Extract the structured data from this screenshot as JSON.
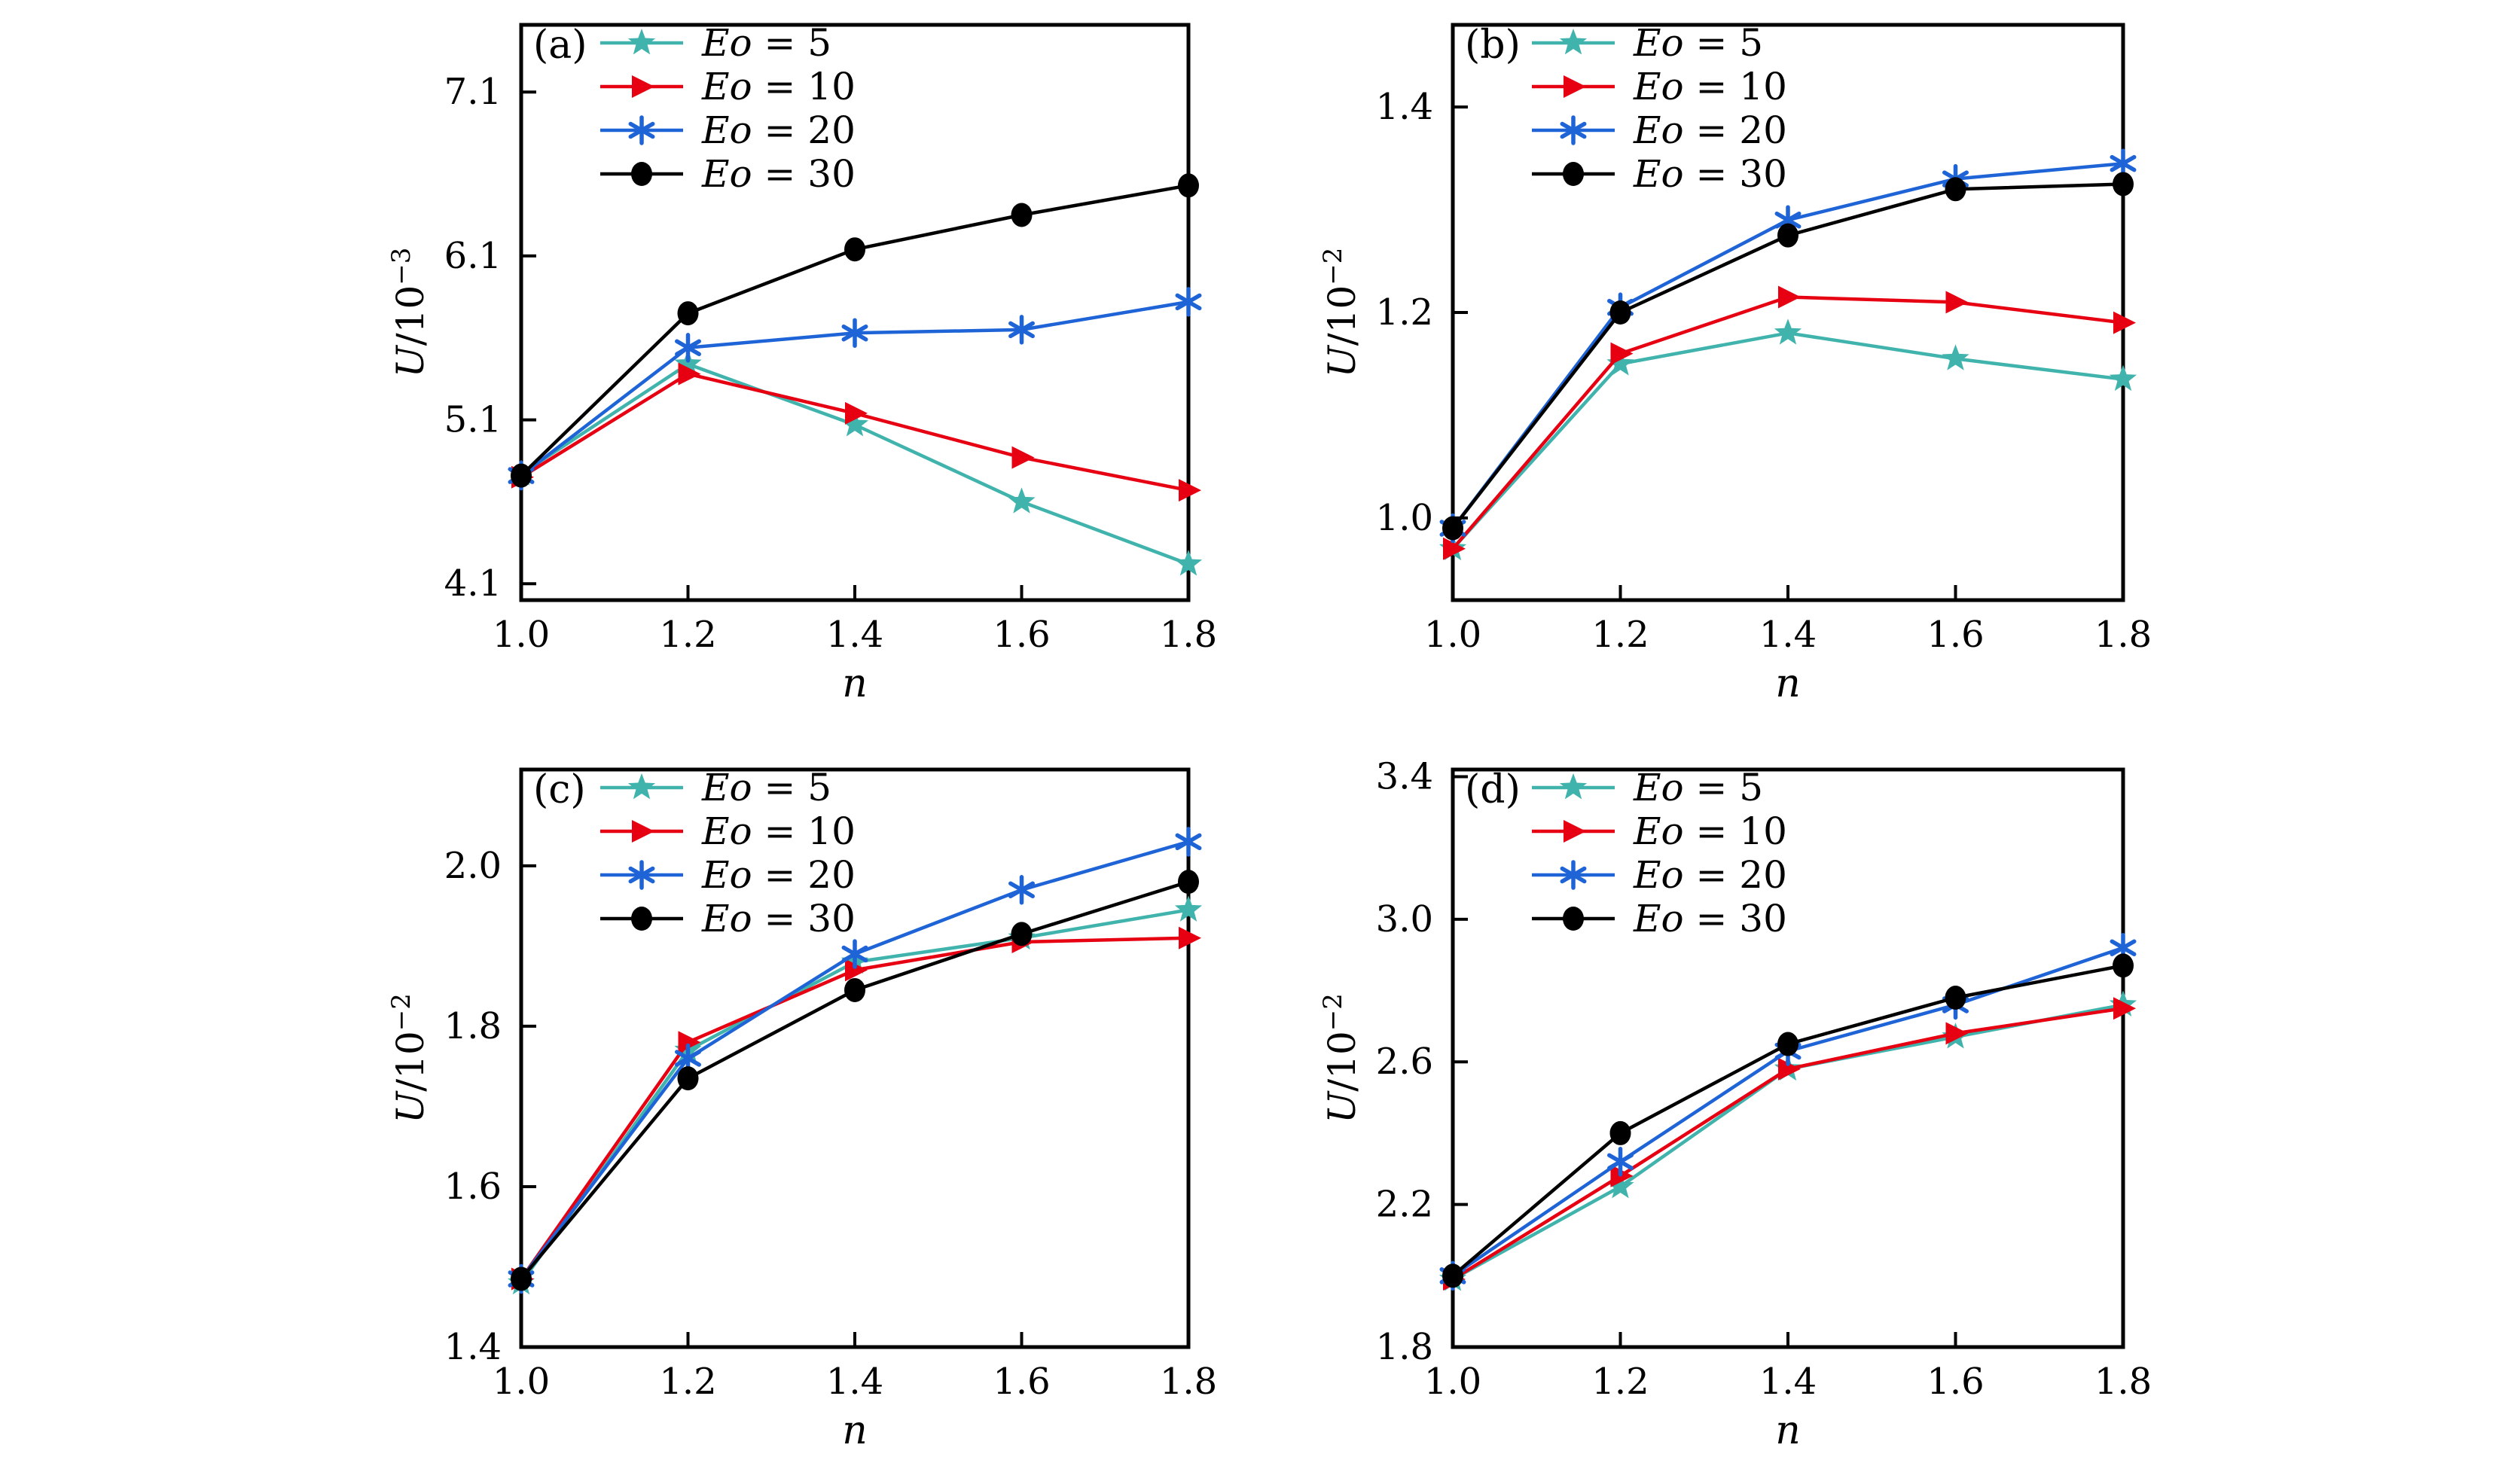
{
  "figure": {
    "background": "#ffffff",
    "frame_color": "#000000",
    "xlabel": "n",
    "panel_letters": [
      "(a)",
      "(b)",
      "(c)",
      "(d)"
    ]
  },
  "legend": {
    "labels": [
      "Eo = 5",
      "Eo = 10",
      "Eo = 20",
      "Eo = 30"
    ],
    "position": "top-left"
  },
  "colors": {
    "eo5": "#40B3AD",
    "eo10": "#E60012",
    "eo20": "#1E64D7",
    "eo30": "#000000"
  },
  "chart_data": [
    {
      "id": "a",
      "panel_label": "(a)",
      "type": "line",
      "xlabel": "n",
      "ylabel": {
        "var": "U",
        "den": "/10",
        "exp": "−3"
      },
      "x": [
        1.0,
        1.2,
        1.4,
        1.6,
        1.8
      ],
      "xlim": [
        1.0,
        1.8
      ],
      "ylim": [
        4.0,
        7.51
      ],
      "xtick_labels": [
        "1.0",
        "1.2",
        "1.4",
        "1.6",
        "1.8"
      ],
      "yticks": [
        4.1,
        5.1,
        6.1,
        7.1
      ],
      "ytick_labels": [
        "4.1",
        "5.1",
        "6.1",
        "7.1"
      ],
      "grid": false,
      "legend_position": "top-left",
      "series": [
        {
          "name": "Eo = 5",
          "color": "#40B3AD",
          "marker": "star",
          "values": [
            4.77,
            5.44,
            5.07,
            4.6,
            4.22
          ]
        },
        {
          "name": "Eo = 10",
          "color": "#E60012",
          "marker": "triangle-right",
          "values": [
            4.75,
            5.38,
            5.14,
            4.87,
            4.67
          ]
        },
        {
          "name": "Eo = 20",
          "color": "#1E64D7",
          "marker": "asterisk",
          "values": [
            4.76,
            5.54,
            5.63,
            5.65,
            5.82
          ]
        },
        {
          "name": "Eo = 30",
          "color": "#000000",
          "marker": "circle",
          "values": [
            4.76,
            5.75,
            6.14,
            6.35,
            6.53
          ]
        }
      ]
    },
    {
      "id": "b",
      "panel_label": "(b)",
      "type": "line",
      "xlabel": "n",
      "ylabel": {
        "var": "U",
        "den": "/10",
        "exp": "−2"
      },
      "x": [
        1.0,
        1.2,
        1.4,
        1.6,
        1.8
      ],
      "xlim": [
        1.0,
        1.8
      ],
      "ylim": [
        0.92,
        1.48
      ],
      "xtick_labels": [
        "1.0",
        "1.2",
        "1.4",
        "1.6",
        "1.8"
      ],
      "yticks": [
        1.0,
        1.2,
        1.4
      ],
      "ytick_labels": [
        "1.0",
        "1.2",
        "1.4"
      ],
      "grid": false,
      "legend_position": "top-left",
      "series": [
        {
          "name": "Eo = 5",
          "color": "#40B3AD",
          "marker": "star",
          "values": [
            0.97,
            1.15,
            1.18,
            1.155,
            1.135
          ]
        },
        {
          "name": "Eo = 10",
          "color": "#E60012",
          "marker": "triangle-right",
          "values": [
            0.97,
            1.16,
            1.215,
            1.21,
            1.19
          ]
        },
        {
          "name": "Eo = 20",
          "color": "#1E64D7",
          "marker": "asterisk",
          "values": [
            0.99,
            1.205,
            1.29,
            1.33,
            1.345
          ]
        },
        {
          "name": "Eo = 30",
          "color": "#000000",
          "marker": "circle",
          "values": [
            0.99,
            1.2,
            1.275,
            1.32,
            1.325
          ]
        }
      ]
    },
    {
      "id": "c",
      "panel_label": "(c)",
      "type": "line",
      "xlabel": "n",
      "ylabel": {
        "var": "U",
        "den": "/10",
        "exp": "−2"
      },
      "x": [
        1.0,
        1.2,
        1.4,
        1.6,
        1.8
      ],
      "xlim": [
        1.0,
        1.8
      ],
      "ylim": [
        1.4,
        2.12
      ],
      "xtick_labels": [
        "1.0",
        "1.2",
        "1.4",
        "1.6",
        "1.8"
      ],
      "yticks": [
        1.4,
        1.6,
        1.8,
        2.0
      ],
      "ytick_labels": [
        "1.4",
        "1.6",
        "1.8",
        "2.0"
      ],
      "grid": false,
      "legend_position": "top-left",
      "series": [
        {
          "name": "Eo = 5",
          "color": "#40B3AD",
          "marker": "star",
          "values": [
            1.48,
            1.77,
            1.88,
            1.91,
            1.945
          ]
        },
        {
          "name": "Eo = 10",
          "color": "#E60012",
          "marker": "triangle-right",
          "values": [
            1.485,
            1.78,
            1.87,
            1.905,
            1.91
          ]
        },
        {
          "name": "Eo = 20",
          "color": "#1E64D7",
          "marker": "asterisk",
          "values": [
            1.485,
            1.76,
            1.89,
            1.97,
            2.03
          ]
        },
        {
          "name": "Eo = 30",
          "color": "#000000",
          "marker": "circle",
          "values": [
            1.485,
            1.735,
            1.845,
            1.915,
            1.98
          ]
        }
      ]
    },
    {
      "id": "d",
      "panel_label": "(d)",
      "type": "line",
      "xlabel": "n",
      "ylabel": {
        "var": "U",
        "den": "/10",
        "exp": "−2"
      },
      "x": [
        1.0,
        1.2,
        1.4,
        1.6,
        1.8
      ],
      "xlim": [
        1.0,
        1.8
      ],
      "ylim": [
        1.8,
        3.42
      ],
      "xtick_labels": [
        "1.0",
        "1.2",
        "1.4",
        "1.6",
        "1.8"
      ],
      "yticks": [
        1.8,
        2.2,
        2.6,
        3.0,
        3.4
      ],
      "ytick_labels": [
        "1.8",
        "2.2",
        "2.6",
        "3.0",
        "3.4"
      ],
      "grid": false,
      "legend_position": "top-left",
      "series": [
        {
          "name": "Eo = 5",
          "color": "#40B3AD",
          "marker": "star",
          "values": [
            1.99,
            2.25,
            2.58,
            2.67,
            2.76
          ]
        },
        {
          "name": "Eo = 10",
          "color": "#E60012",
          "marker": "triangle-right",
          "values": [
            1.99,
            2.28,
            2.58,
            2.68,
            2.75
          ]
        },
        {
          "name": "Eo = 20",
          "color": "#1E64D7",
          "marker": "asterisk",
          "values": [
            2.0,
            2.32,
            2.63,
            2.76,
            2.92
          ]
        },
        {
          "name": "Eo = 30",
          "color": "#000000",
          "marker": "circle",
          "values": [
            2.0,
            2.4,
            2.65,
            2.78,
            2.87
          ]
        }
      ]
    }
  ]
}
